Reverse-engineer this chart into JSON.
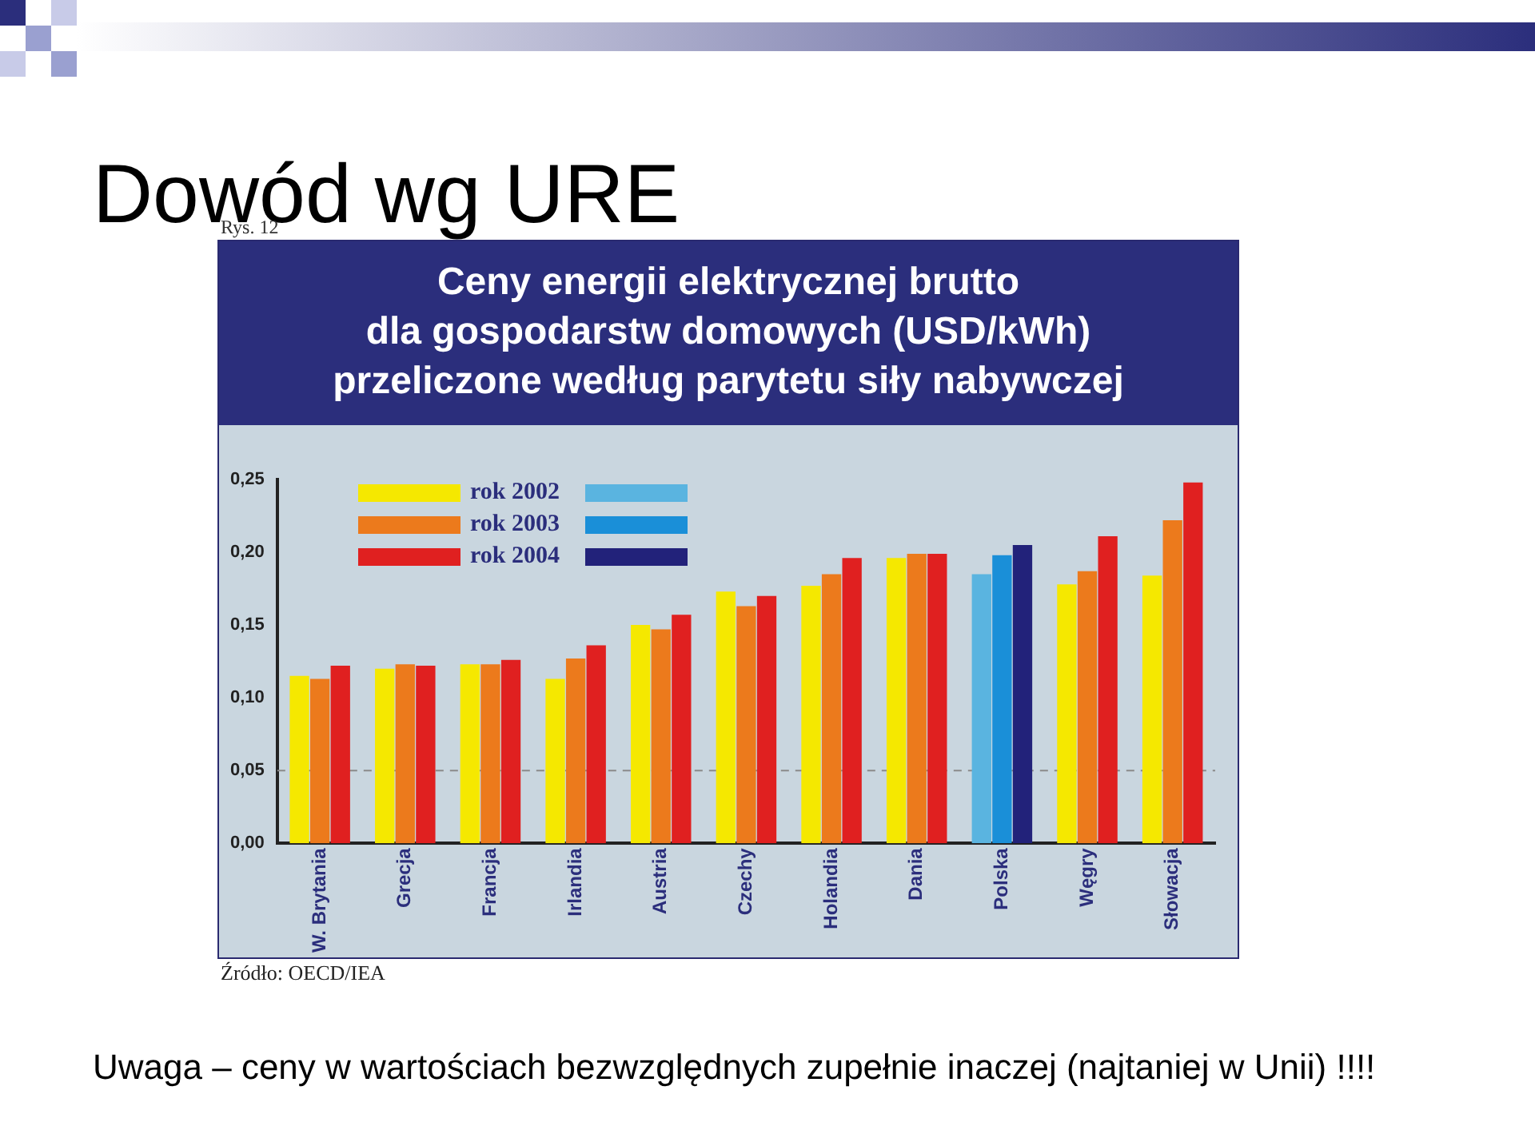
{
  "chart_data": {
    "type": "bar",
    "title": "Ceny energii elektrycznej brutto\ndla gospodarstw domowych (USD/kWh)\nprzeliczone według parytetu siły nabywczej",
    "categories": [
      "W. Brytania",
      "Grecja",
      "Francja",
      "Irlandia",
      "Austria",
      "Czechy",
      "Holandia",
      "Dania",
      "Polska",
      "Węgry",
      "Słowacja"
    ],
    "series": [
      {
        "name": "rok 2002",
        "colors": [
          "#f5e800",
          "#f5e800",
          "#f5e800",
          "#f5e800",
          "#f5e800",
          "#f5e800",
          "#f5e800",
          "#f5e800",
          "#5ab4e0",
          "#f5e800",
          "#f5e800"
        ],
        "values": [
          0.115,
          0.12,
          0.123,
          0.113,
          0.15,
          0.173,
          0.177,
          0.196,
          0.185,
          0.178,
          0.184
        ]
      },
      {
        "name": "rok 2003",
        "colors": [
          "#ec7a1c",
          "#ec7a1c",
          "#ec7a1c",
          "#ec7a1c",
          "#ec7a1c",
          "#ec7a1c",
          "#ec7a1c",
          "#ec7a1c",
          "#1a8fd8",
          "#ec7a1c",
          "#ec7a1c"
        ],
        "values": [
          0.113,
          0.123,
          0.123,
          0.127,
          0.147,
          0.163,
          0.185,
          0.199,
          0.198,
          0.187,
          0.222
        ]
      },
      {
        "name": "rok 2004",
        "colors": [
          "#e02020",
          "#e02020",
          "#e02020",
          "#e02020",
          "#e02020",
          "#e02020",
          "#e02020",
          "#e02020",
          "#22227a",
          "#e02020",
          "#e02020"
        ],
        "values": [
          0.122,
          0.122,
          0.126,
          0.136,
          0.157,
          0.17,
          0.196,
          0.199,
          0.205,
          0.211,
          0.248
        ]
      }
    ],
    "ylim": [
      0,
      0.25
    ],
    "yticks": [
      {
        "value": 0,
        "label": "0,00"
      },
      {
        "value": 0.05,
        "label": "0,05"
      },
      {
        "value": 0.1,
        "label": "0,10"
      },
      {
        "value": 0.15,
        "label": "0,15"
      },
      {
        "value": 0.2,
        "label": "0,20"
      },
      {
        "value": 0.25,
        "label": "0,25"
      }
    ],
    "ref_lines": [
      {
        "axis": "y",
        "value": 0.05,
        "color": "#8a8a8a",
        "line_style": "dashed"
      }
    ],
    "legend": "top left",
    "grid": false,
    "annotations": [
      "Dowód wg URE",
      "Rys. 12",
      "Źródło: OECD/IEA",
      "Uwaga – ceny w wartościach bezwzględnych zupełnie inaczej (najtaniej  w Unii) !!!!"
    ]
  }
}
